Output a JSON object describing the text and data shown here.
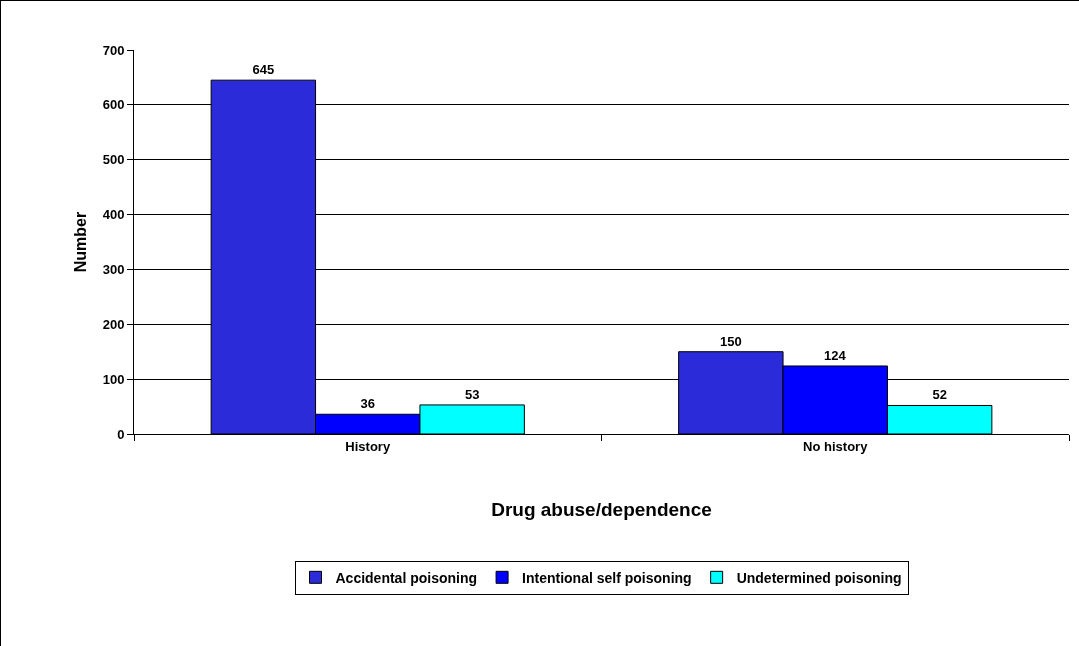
{
  "chart_data": {
    "type": "bar",
    "xlabel": "Drug abuse/dependence",
    "ylabel": "Number",
    "categories": [
      "History",
      "No history"
    ],
    "series": [
      {
        "name": "Accidental poisoning",
        "color": "#2b2bd9",
        "values": [
          645,
          150
        ]
      },
      {
        "name": "Intentional self poisoning",
        "color": "#0000ff",
        "values": [
          36,
          124
        ]
      },
      {
        "name": "Undetermined poisoning",
        "color": "#00ffff",
        "values": [
          53,
          52
        ]
      }
    ],
    "ylim": [
      0,
      700
    ],
    "yticks": [
      0,
      100,
      200,
      300,
      400,
      500,
      600,
      700
    ],
    "grid": "y",
    "legend": "bottom",
    "data_labels": true
  }
}
